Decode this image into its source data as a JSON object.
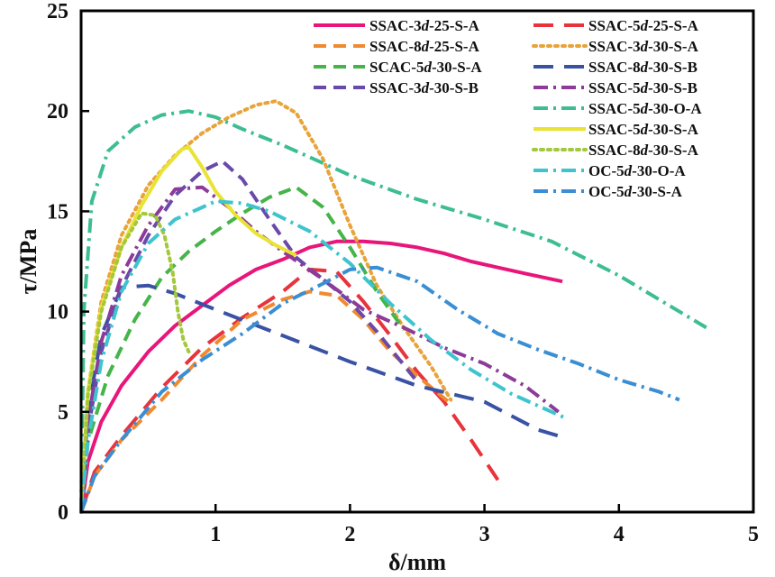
{
  "chart_data": {
    "type": "line",
    "xlabel": "δ/mm",
    "ylabel": "τ/MPa",
    "xlim": [
      0,
      5
    ],
    "ylim": [
      0,
      25
    ],
    "xticks": [
      "1",
      "2",
      "3",
      "4",
      "5"
    ],
    "yticks": [
      "0",
      "5",
      "10",
      "15",
      "20",
      "25"
    ],
    "grid": false,
    "legend": "top-right",
    "series": [
      {
        "name": "SSAC-3d-25-S-A",
        "legend_parts": [
          "SSAC-3",
          "d",
          "-25-S-A"
        ],
        "color": "#e8167a",
        "dash": "solid",
        "x": [
          0,
          0.05,
          0.15,
          0.3,
          0.5,
          0.7,
          0.9,
          1.1,
          1.3,
          1.5,
          1.7,
          1.9,
          2.1,
          2.3,
          2.5,
          2.7,
          2.9,
          3.1,
          3.3,
          3.58
        ],
        "y": [
          0,
          2.5,
          4.5,
          6.3,
          8.0,
          9.3,
          10.3,
          11.3,
          12.1,
          12.6,
          13.2,
          13.5,
          13.5,
          13.4,
          13.2,
          12.9,
          12.5,
          12.2,
          11.9,
          11.5
        ]
      },
      {
        "name": "SSAC-5d-25-S-A",
        "legend_parts": [
          "SSAC-5",
          "d",
          "-25-S-A"
        ],
        "color": "#e8333c",
        "dash": "longdash",
        "x": [
          0,
          0.1,
          0.3,
          0.6,
          0.9,
          1.2,
          1.5,
          1.7,
          1.9,
          2.1,
          2.3,
          2.5,
          2.7,
          2.9,
          3.1
        ],
        "y": [
          0,
          2.0,
          3.8,
          6.2,
          8.2,
          9.7,
          11.0,
          12.1,
          12.0,
          10.5,
          8.8,
          7.0,
          5.5,
          3.6,
          1.6
        ]
      },
      {
        "name": "SSAC-8d-25-S-A",
        "legend_parts": [
          "SSAC-8",
          "d",
          "-25-S-A"
        ],
        "color": "#f08a30",
        "dash": "dash",
        "x": [
          0,
          0.1,
          0.3,
          0.6,
          0.9,
          1.2,
          1.5,
          1.7,
          1.9,
          2.1,
          2.3,
          2.5,
          2.75
        ],
        "y": [
          0,
          1.8,
          3.6,
          5.6,
          7.8,
          9.6,
          10.6,
          11.0,
          10.8,
          9.6,
          8.0,
          6.8,
          5.4
        ]
      },
      {
        "name": "SSAC-3d-30-S-A",
        "legend_parts": [
          "SSAC-3",
          "d",
          "-30-S-A"
        ],
        "color": "#e8a43a",
        "dash": "dot",
        "x": [
          0,
          0.05,
          0.15,
          0.3,
          0.5,
          0.7,
          0.9,
          1.1,
          1.3,
          1.45,
          1.6,
          1.8,
          2.0,
          2.2,
          2.4,
          2.6,
          2.75
        ],
        "y": [
          0,
          6.0,
          10.5,
          13.8,
          16.3,
          17.8,
          18.9,
          19.7,
          20.3,
          20.5,
          19.9,
          17.6,
          14.3,
          11.3,
          9.2,
          7.3,
          5.6
        ]
      },
      {
        "name": "SCAC-5d-30-S-A",
        "legend_parts": [
          "SCAC-5",
          "d",
          "-30-S-A"
        ],
        "color": "#45b449",
        "dash": "dash",
        "x": [
          0,
          0.05,
          0.2,
          0.4,
          0.6,
          0.8,
          1.0,
          1.2,
          1.4,
          1.6,
          1.8,
          2.0,
          2.2,
          2.4
        ],
        "y": [
          0,
          3.5,
          6.8,
          9.6,
          11.7,
          13.0,
          14.0,
          14.9,
          15.7,
          16.2,
          15.2,
          13.2,
          11.0,
          9.1
        ]
      },
      {
        "name": "SSAC-8d-30-S-B",
        "legend_parts": [
          "SSAC-8",
          "d",
          "-30-S-B"
        ],
        "color": "#3a52a4",
        "dash": "longdash",
        "x": [
          0,
          0.05,
          0.15,
          0.3,
          0.5,
          0.7,
          1.0,
          1.5,
          2.0,
          2.5,
          3.0,
          3.4,
          3.55
        ],
        "y": [
          0,
          5.0,
          8.8,
          11.2,
          11.3,
          10.9,
          10.1,
          8.8,
          7.5,
          6.3,
          5.5,
          4.1,
          3.8
        ]
      },
      {
        "name": "SSAC-3d-30-S-B",
        "legend_parts": [
          "SSAC-3",
          "d",
          "-30-S-B"
        ],
        "color": "#6a4aa8",
        "dash": "dash",
        "x": [
          0,
          0.05,
          0.15,
          0.3,
          0.5,
          0.7,
          0.9,
          1.05,
          1.2,
          1.4,
          1.6,
          1.8,
          2.0,
          2.2,
          2.5
        ],
        "y": [
          0,
          4.0,
          8.0,
          11.2,
          13.8,
          15.8,
          17.0,
          17.5,
          16.6,
          14.6,
          12.7,
          11.6,
          10.5,
          9.0,
          6.5
        ]
      },
      {
        "name": "SSAC-5d-30-S-B",
        "legend_parts": [
          "SSAC-5",
          "d",
          "-30-S-B"
        ],
        "color": "#8c3c98",
        "dash": "dashdot",
        "x": [
          0,
          0.05,
          0.15,
          0.3,
          0.5,
          0.7,
          0.9,
          1.1,
          1.3,
          1.5,
          1.8,
          2.1,
          2.4,
          2.7,
          3.0,
          3.3,
          3.55
        ],
        "y": [
          0,
          4.5,
          8.5,
          11.8,
          14.3,
          16.1,
          16.2,
          15.2,
          14.0,
          13.0,
          11.6,
          10.1,
          9.2,
          8.2,
          7.4,
          6.3,
          5.0
        ]
      },
      {
        "name": "SSAC-5d-30-O-A",
        "legend_parts": [
          "SSAC-5",
          "d",
          "-30-O-A"
        ],
        "color": "#3dbe90",
        "dash": "dashdot",
        "x": [
          0,
          0.02,
          0.08,
          0.2,
          0.4,
          0.6,
          0.8,
          1.0,
          1.2,
          1.5,
          2.0,
          2.5,
          3.0,
          3.5,
          4.0,
          4.4,
          4.65
        ],
        "y": [
          0,
          10.0,
          15.5,
          18.0,
          19.2,
          19.8,
          20.0,
          19.7,
          19.1,
          18.3,
          16.8,
          15.6,
          14.6,
          13.5,
          11.8,
          10.2,
          9.2
        ]
      },
      {
        "name": "SSAC-5d-30-S-A",
        "legend_parts": [
          "SSAC-5",
          "d",
          "-30-S-A"
        ],
        "color": "#e9e334",
        "dash": "solid",
        "x": [
          0,
          0.05,
          0.15,
          0.3,
          0.45,
          0.6,
          0.75,
          0.8,
          0.9,
          1.0,
          1.15,
          1.3,
          1.45,
          1.6
        ],
        "y": [
          0,
          6.0,
          10.2,
          13.2,
          15.3,
          17.0,
          18.1,
          18.2,
          17.2,
          16.0,
          14.8,
          13.9,
          13.3,
          12.8
        ]
      },
      {
        "name": "SSAC-8d-30-S-A",
        "legend_parts": [
          "SSAC-8",
          "d",
          "-30-S-A"
        ],
        "color": "#a4c83c",
        "dash": "dot",
        "x": [
          0,
          0.05,
          0.15,
          0.3,
          0.45,
          0.55,
          0.62,
          0.68,
          0.72,
          0.76,
          0.8
        ],
        "y": [
          0,
          5.8,
          10.0,
          13.2,
          14.9,
          14.8,
          13.8,
          12.0,
          10.0,
          8.6,
          8.0
        ]
      },
      {
        "name": "OC-5d-30-O-A",
        "legend_parts": [
          "OC-5",
          "d",
          "-30-O-A"
        ],
        "color": "#3ec4ce",
        "dash": "dashdot",
        "x": [
          0,
          0.05,
          0.15,
          0.3,
          0.5,
          0.7,
          0.9,
          1.0,
          1.2,
          1.4,
          1.7,
          2.0,
          2.3,
          2.6,
          2.9,
          3.2,
          3.6
        ],
        "y": [
          0,
          3.5,
          7.5,
          11.0,
          13.4,
          14.6,
          15.2,
          15.5,
          15.4,
          15.0,
          14.0,
          12.4,
          10.4,
          8.6,
          7.1,
          5.9,
          4.7
        ]
      },
      {
        "name": "OC-5d-30-S-A",
        "legend_parts": [
          "OC-5",
          "d",
          "-30-S-A"
        ],
        "color": "#3a8ed4",
        "dash": "dashdot",
        "x": [
          0,
          0.1,
          0.3,
          0.6,
          0.9,
          1.2,
          1.5,
          1.8,
          2.0,
          2.2,
          2.5,
          2.8,
          3.1,
          3.4,
          3.7,
          4.0,
          4.3,
          4.45
        ],
        "y": [
          0,
          1.8,
          3.6,
          6.0,
          7.6,
          8.9,
          10.4,
          11.4,
          12.1,
          12.2,
          11.5,
          10.1,
          8.9,
          8.1,
          7.4,
          6.6,
          6.0,
          5.6
        ]
      }
    ]
  }
}
